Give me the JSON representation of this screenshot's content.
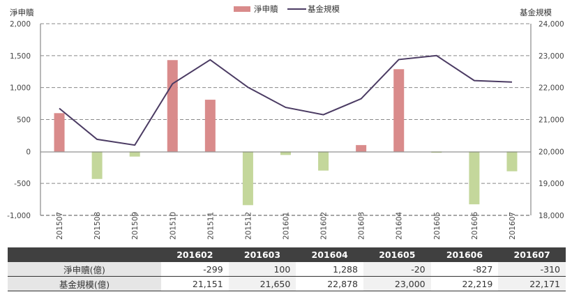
{
  "chart_data": {
    "type": "bar+line",
    "title": "",
    "categories": [
      "201507",
      "201508",
      "201509",
      "201510",
      "201511",
      "201512",
      "201601",
      "201602",
      "201603",
      "201604",
      "201605",
      "201606",
      "201607"
    ],
    "series": [
      {
        "name": "淨申贖",
        "type": "bar",
        "axis": "left",
        "values": [
          600,
          -430,
          -80,
          1430,
          810,
          -840,
          -55,
          -299,
          100,
          1288,
          -20,
          -827,
          -310
        ],
        "positive_color": "#d98b8b",
        "negative_color": "#c4d79b"
      },
      {
        "name": "基金規模",
        "type": "line",
        "axis": "right",
        "values": [
          21350,
          20380,
          20200,
          22120,
          22870,
          22010,
          21380,
          21151,
          21650,
          22878,
          23000,
          22219,
          22171
        ],
        "color": "#4b3b63"
      }
    ],
    "left_axis": {
      "label": "淨申贖",
      "ylim": [
        -1000,
        2000
      ],
      "ticks": [
        "2,000",
        "1,500",
        "1,000",
        "500",
        "0",
        "-500",
        "-1,000"
      ]
    },
    "right_axis": {
      "label": "基金規模",
      "ylim": [
        18000,
        24000
      ],
      "ticks": [
        "24,000",
        "23,000",
        "22,000",
        "21,000",
        "20,000",
        "19,000",
        "18,000"
      ]
    },
    "legend": {
      "position": "top-center",
      "entries": [
        "淨申贖",
        "基金規模"
      ]
    },
    "grid": "horizontal dashed"
  },
  "legend": {
    "bar_label": "淨申贖",
    "line_label": "基金規模"
  },
  "axes": {
    "left_title": "淨申贖",
    "right_title": "基金規模"
  },
  "table": {
    "headers": [
      "",
      "201602",
      "201603",
      "201604",
      "201605",
      "201606",
      "201607"
    ],
    "rows": [
      {
        "label": "淨申贖(億)",
        "values": [
          "-299",
          "100",
          "1,288",
          "-20",
          "-827",
          "-310"
        ]
      },
      {
        "label": "基金規模(億)",
        "values": [
          "21,151",
          "21,650",
          "22,878",
          "23,000",
          "22,219",
          "22,171"
        ]
      }
    ]
  }
}
